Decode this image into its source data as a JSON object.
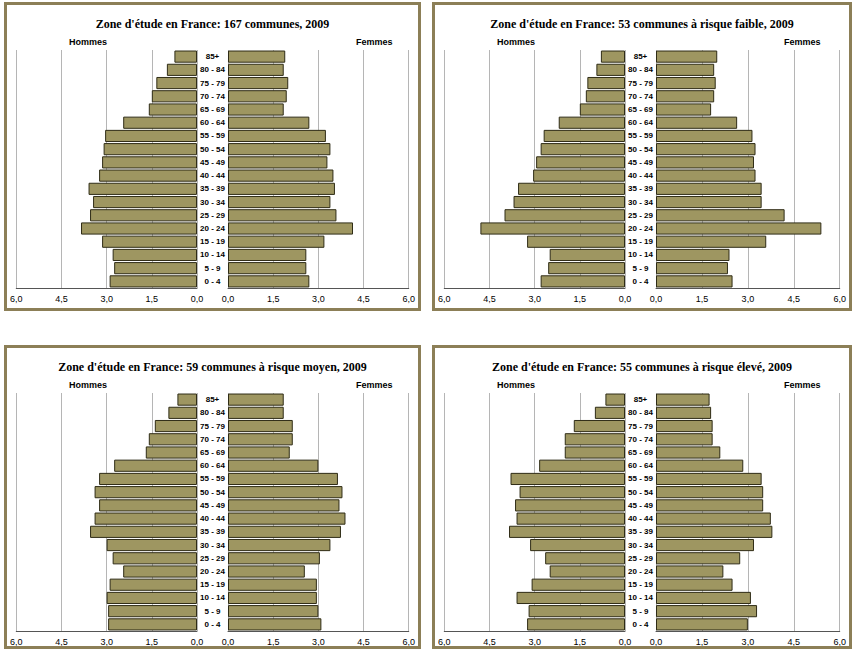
{
  "chart_data": [
    {
      "type": "bar",
      "orientation": "horizontal",
      "grid": true,
      "title": "Zone d'étude en France: 167 communes, 2009",
      "categories": [
        "0 - 4",
        "5 - 9",
        "10 - 14",
        "15 - 19",
        "20 - 24",
        "25 - 29",
        "30 - 34",
        "35 - 39",
        "40 - 44",
        "45 - 49",
        "50 - 54",
        "55 - 59",
        "60 - 64",
        "65 - 69",
        "70 - 74",
        "75 - 79",
        "80 - 84",
        "85+"
      ],
      "series": [
        {
          "name": "Hommes",
          "color": "#9e9661",
          "values": [
            2.9,
            2.75,
            2.8,
            3.15,
            3.85,
            3.55,
            3.45,
            3.6,
            3.25,
            3.15,
            3.1,
            3.05,
            2.45,
            1.6,
            1.5,
            1.35,
            1.0,
            0.75
          ]
        },
        {
          "name": "Femmes",
          "color": "#9e9661",
          "values": [
            2.7,
            2.6,
            2.6,
            3.2,
            4.15,
            3.6,
            3.4,
            3.55,
            3.5,
            3.3,
            3.4,
            3.25,
            2.7,
            1.85,
            1.95,
            2.0,
            1.85,
            1.9
          ]
        }
      ],
      "xlim": [
        0,
        6
      ],
      "xticks": [
        {
          "value": 0,
          "label": "0,0"
        },
        {
          "value": 1.5,
          "label": "1,5"
        },
        {
          "value": 3,
          "label": "3,0"
        },
        {
          "value": 4.5,
          "label": "4,5"
        },
        {
          "value": 6,
          "label": "6,0"
        }
      ]
    },
    {
      "type": "bar",
      "orientation": "horizontal",
      "grid": true,
      "title": "Zone d'étude en France: 53 communes à risque faible, 2009",
      "categories": [
        "0 - 4",
        "5 - 9",
        "10 - 14",
        "15 - 19",
        "20 - 24",
        "25 - 29",
        "30 - 34",
        "35 - 39",
        "40 - 44",
        "45 - 49",
        "50 - 54",
        "55 - 59",
        "60 - 64",
        "65 - 69",
        "70 - 74",
        "75 - 79",
        "80 - 84",
        "85+"
      ],
      "series": [
        {
          "name": "Hommes",
          "color": "#9e9661",
          "values": [
            2.8,
            2.55,
            2.5,
            3.25,
            4.8,
            4.0,
            3.7,
            3.55,
            3.05,
            2.95,
            2.8,
            2.7,
            2.2,
            1.5,
            1.3,
            1.25,
            0.95,
            0.8
          ]
        },
        {
          "name": "Femmes",
          "color": "#9e9661",
          "values": [
            2.5,
            2.35,
            2.4,
            3.6,
            5.4,
            4.2,
            3.45,
            3.45,
            3.25,
            3.2,
            3.25,
            3.15,
            2.65,
            1.8,
            1.9,
            1.95,
            1.9,
            2.0
          ]
        }
      ],
      "xlim": [
        0,
        6
      ],
      "xticks": [
        {
          "value": 0,
          "label": "0,0"
        },
        {
          "value": 1.5,
          "label": "1,5"
        },
        {
          "value": 3,
          "label": "3,0"
        },
        {
          "value": 4.5,
          "label": "4,5"
        },
        {
          "value": 6,
          "label": "6,0"
        }
      ]
    },
    {
      "type": "bar",
      "orientation": "horizontal",
      "grid": true,
      "title": "Zone d'étude en France: 59 communes à risque moyen, 2009",
      "categories": [
        "0 - 4",
        "5 - 9",
        "10 - 14",
        "15 - 19",
        "20 - 24",
        "25 - 29",
        "30 - 34",
        "35 - 39",
        "40 - 44",
        "45 - 49",
        "50 - 54",
        "55 - 59",
        "60 - 64",
        "65 - 69",
        "70 - 74",
        "75 - 79",
        "80 - 84",
        "85+"
      ],
      "series": [
        {
          "name": "Hommes",
          "color": "#9e9661",
          "values": [
            2.95,
            2.95,
            3.0,
            2.9,
            2.45,
            2.8,
            3.0,
            3.55,
            3.4,
            3.25,
            3.4,
            3.25,
            2.75,
            1.7,
            1.6,
            1.4,
            0.95,
            0.65
          ]
        },
        {
          "name": "Femmes",
          "color": "#9e9661",
          "values": [
            3.1,
            3.0,
            2.95,
            2.95,
            2.55,
            3.05,
            3.4,
            3.75,
            3.9,
            3.7,
            3.8,
            3.65,
            3.0,
            2.05,
            2.15,
            2.15,
            1.85,
            1.85
          ]
        }
      ],
      "xlim": [
        0,
        6
      ],
      "xticks": [
        {
          "value": 0,
          "label": "0,0"
        },
        {
          "value": 1.5,
          "label": "1,5"
        },
        {
          "value": 3,
          "label": "3,0"
        },
        {
          "value": 4.5,
          "label": "4,5"
        },
        {
          "value": 6,
          "label": "6,0"
        }
      ]
    },
    {
      "type": "bar",
      "orientation": "horizontal",
      "grid": true,
      "title": "Zone d'étude en France: 55 communes à risque élevé, 2009",
      "categories": [
        "0 - 4",
        "5 - 9",
        "10 - 14",
        "15 - 19",
        "20 - 24",
        "25 - 29",
        "30 - 34",
        "35 - 39",
        "40 - 44",
        "45 - 49",
        "50 - 54",
        "55 - 59",
        "60 - 64",
        "65 - 69",
        "70 - 74",
        "75 - 79",
        "80 - 84",
        "85+"
      ],
      "series": [
        {
          "name": "Hommes",
          "color": "#9e9661",
          "values": [
            3.25,
            3.2,
            3.6,
            3.1,
            2.5,
            2.65,
            3.15,
            3.85,
            3.6,
            3.65,
            3.5,
            3.8,
            2.85,
            2.0,
            2.0,
            1.7,
            1.0,
            0.65
          ]
        },
        {
          "name": "Femmes",
          "color": "#9e9661",
          "values": [
            3.0,
            3.3,
            3.1,
            2.5,
            2.2,
            2.75,
            3.2,
            3.8,
            3.75,
            3.5,
            3.5,
            3.45,
            2.85,
            2.1,
            1.85,
            1.85,
            1.8,
            1.75
          ]
        }
      ],
      "xlim": [
        0,
        6
      ],
      "xticks": [
        {
          "value": 0,
          "label": "0,0"
        },
        {
          "value": 1.5,
          "label": "1,5"
        },
        {
          "value": 3,
          "label": "3,0"
        },
        {
          "value": 4.5,
          "label": "4,5"
        },
        {
          "value": 6,
          "label": "6,0"
        }
      ]
    }
  ]
}
